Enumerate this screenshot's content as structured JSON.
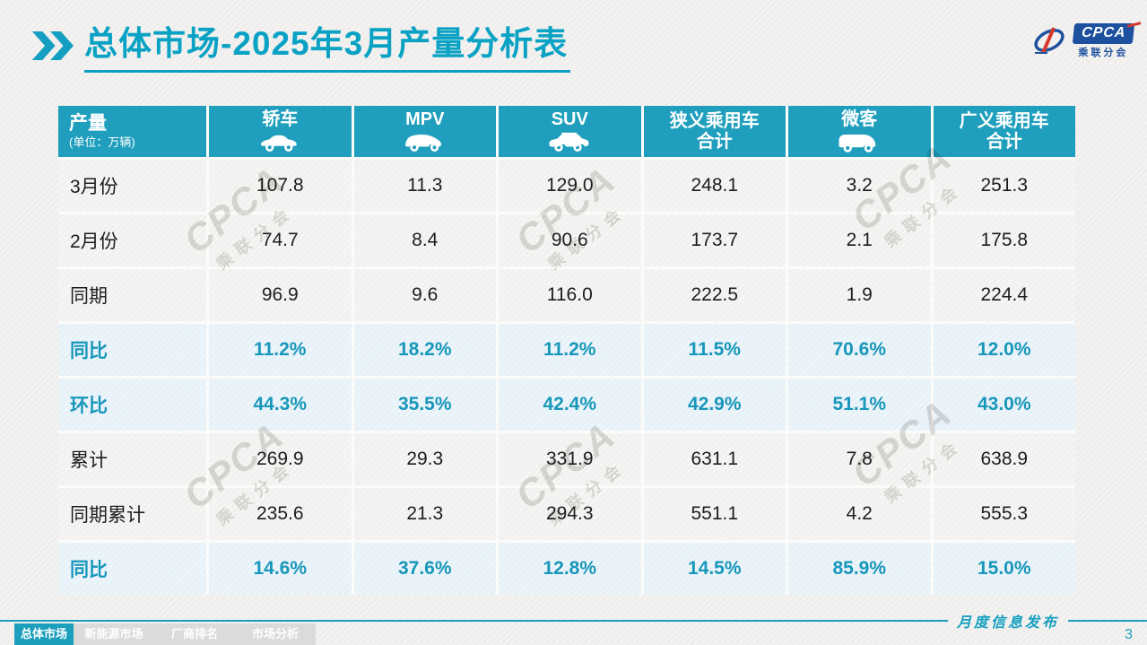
{
  "title": {
    "text": "总体市场-2025年3月产量分析表"
  },
  "logo": {
    "brand": "CPCA",
    "sub": "乘联分会"
  },
  "colors": {
    "accent": "#1b9fbd",
    "title": "#0aa2c4",
    "header_bg": "#1f9fbd",
    "percent_text": "#1797ba",
    "percent_row_bg": "#e7f1f8",
    "row_bg": "#f2f1ef",
    "logo_blue": "#1d509e",
    "logo_red": "#d6382c"
  },
  "table": {
    "corner": {
      "title": "产量",
      "unit": "(单位：万辆)"
    },
    "columns": [
      {
        "lines": [
          "轿车"
        ],
        "icon": "sedan-icon"
      },
      {
        "lines": [
          "MPV"
        ],
        "icon": "mpv-icon"
      },
      {
        "lines": [
          "SUV"
        ],
        "icon": "suv-icon"
      },
      {
        "lines": [
          "狭义乘用车",
          "合计"
        ],
        "icon": null
      },
      {
        "lines": [
          "微客"
        ],
        "icon": "microvan-icon"
      },
      {
        "lines": [
          "广义乘用车",
          "合计"
        ],
        "icon": null
      }
    ],
    "rows": [
      {
        "label": "3月份",
        "type": "normal",
        "values": [
          "107.8",
          "11.3",
          "129.0",
          "248.1",
          "3.2",
          "251.3"
        ]
      },
      {
        "label": "2月份",
        "type": "normal",
        "values": [
          "74.7",
          "8.4",
          "90.6",
          "173.7",
          "2.1",
          "175.8"
        ]
      },
      {
        "label": "同期",
        "type": "normal",
        "values": [
          "96.9",
          "9.6",
          "116.0",
          "222.5",
          "1.9",
          "224.4"
        ]
      },
      {
        "label": "同比",
        "type": "percent",
        "values": [
          "11.2%",
          "18.2%",
          "11.2%",
          "11.5%",
          "70.6%",
          "12.0%"
        ]
      },
      {
        "label": "环比",
        "type": "percent",
        "values": [
          "44.3%",
          "35.5%",
          "42.4%",
          "42.9%",
          "51.1%",
          "43.0%"
        ]
      },
      {
        "label": "累计",
        "type": "normal",
        "values": [
          "269.9",
          "29.3",
          "331.9",
          "631.1",
          "7.8",
          "638.9"
        ]
      },
      {
        "label": "同期累计",
        "type": "normal",
        "values": [
          "235.6",
          "21.3",
          "294.3",
          "551.1",
          "4.2",
          "555.3"
        ]
      },
      {
        "label": "同比",
        "type": "percent",
        "values": [
          "14.6%",
          "37.6%",
          "12.8%",
          "14.5%",
          "85.9%",
          "15.0%"
        ]
      }
    ]
  },
  "footer": {
    "tabs": [
      {
        "label": "总体市场",
        "active": true
      },
      {
        "label": "新能源市场",
        "active": false
      },
      {
        "label": "厂商排名",
        "active": false
      },
      {
        "label": "市场分析",
        "active": false
      }
    ],
    "release_label": "月度信息发布",
    "page_number": "3"
  },
  "watermark": {
    "brand": "CPCA",
    "sub": "乘联分会"
  }
}
